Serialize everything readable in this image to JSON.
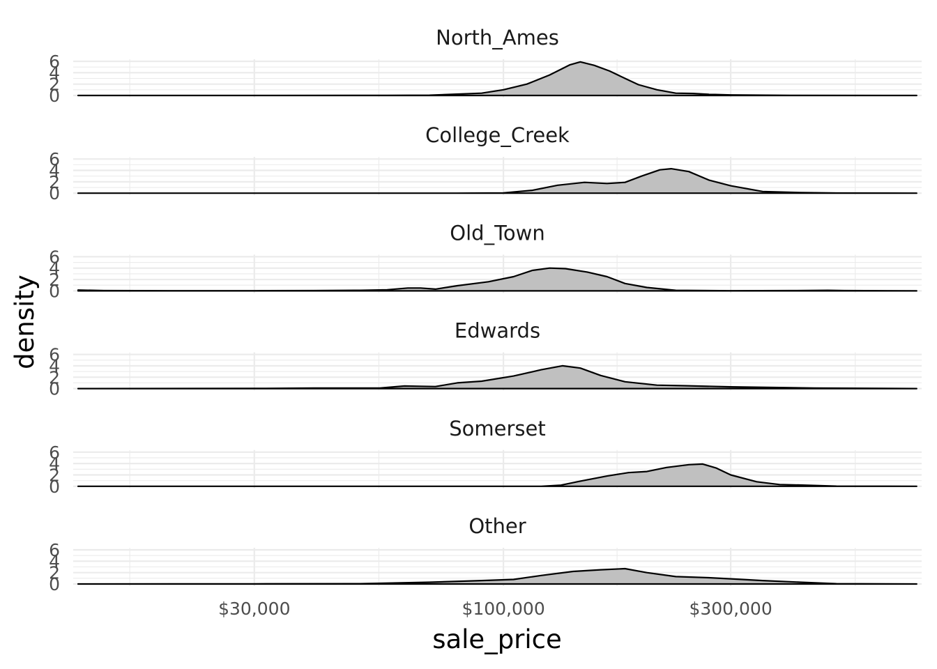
{
  "chart_data": {
    "type": "area",
    "xlabel": "sale_price",
    "ylabel": "density",
    "x_scale": "log10",
    "xlim": [
      12500,
      755000
    ],
    "ylim": [
      0,
      6
    ],
    "x_ticks": [
      {
        "value": 30000,
        "label": "$30,000"
      },
      {
        "value": 100000,
        "label": "$100,000"
      },
      {
        "value": 300000,
        "label": "$300,000"
      }
    ],
    "y_ticks": [
      {
        "value": 0,
        "label": "0"
      },
      {
        "value": 2,
        "label": "2"
      },
      {
        "value": 4,
        "label": "4"
      },
      {
        "value": 6,
        "label": "6"
      }
    ],
    "grid": true,
    "fill_color": "#c0c0c0",
    "line_color": "#000000",
    "panels": [
      {
        "name": "North_Ames",
        "points": [
          [
            12800,
            0
          ],
          [
            30000,
            0
          ],
          [
            57000,
            0.02
          ],
          [
            70000,
            0.05
          ],
          [
            90000,
            0.4
          ],
          [
            100000,
            1.0
          ],
          [
            112000,
            2.0
          ],
          [
            125000,
            3.6
          ],
          [
            138000,
            5.4
          ],
          [
            145000,
            5.9
          ],
          [
            155000,
            5.3
          ],
          [
            167000,
            4.3
          ],
          [
            180000,
            3.0
          ],
          [
            192000,
            1.9
          ],
          [
            210000,
            1.0
          ],
          [
            230000,
            0.4
          ],
          [
            250000,
            0.35
          ],
          [
            270000,
            0.2
          ],
          [
            300000,
            0.1
          ],
          [
            400000,
            0.03
          ],
          [
            737000,
            0
          ]
        ]
      },
      {
        "name": "College_Creek",
        "points": [
          [
            12800,
            0
          ],
          [
            50000,
            0
          ],
          [
            80000,
            0
          ],
          [
            100000,
            0.05
          ],
          [
            115000,
            0.5
          ],
          [
            130000,
            1.4
          ],
          [
            148000,
            1.9
          ],
          [
            165000,
            1.7
          ],
          [
            180000,
            1.9
          ],
          [
            195000,
            3.0
          ],
          [
            213000,
            4.1
          ],
          [
            225000,
            4.3
          ],
          [
            245000,
            3.8
          ],
          [
            270000,
            2.3
          ],
          [
            300000,
            1.3
          ],
          [
            350000,
            0.3
          ],
          [
            420000,
            0.1
          ],
          [
            500000,
            0.03
          ],
          [
            737000,
            0
          ]
        ]
      },
      {
        "name": "Old_Town",
        "points": [
          [
            12800,
            0.15
          ],
          [
            14500,
            0.05
          ],
          [
            20000,
            0.02
          ],
          [
            30000,
            0.02
          ],
          [
            40000,
            0.05
          ],
          [
            50000,
            0.1
          ],
          [
            57000,
            0.2
          ],
          [
            63000,
            0.5
          ],
          [
            67000,
            0.5
          ],
          [
            72000,
            0.3
          ],
          [
            80000,
            0.9
          ],
          [
            93000,
            1.6
          ],
          [
            105000,
            2.5
          ],
          [
            115000,
            3.6
          ],
          [
            125000,
            4.0
          ],
          [
            135000,
            3.9
          ],
          [
            150000,
            3.3
          ],
          [
            165000,
            2.5
          ],
          [
            180000,
            1.3
          ],
          [
            200000,
            0.6
          ],
          [
            230000,
            0.1
          ],
          [
            300000,
            0.02
          ],
          [
            400000,
            0.05
          ],
          [
            480000,
            0.1
          ],
          [
            520000,
            0.05
          ],
          [
            737000,
            0
          ]
        ]
      },
      {
        "name": "Edwards",
        "points": [
          [
            12800,
            0
          ],
          [
            30000,
            0.02
          ],
          [
            40000,
            0.08
          ],
          [
            55000,
            0.1
          ],
          [
            62000,
            0.45
          ],
          [
            67000,
            0.4
          ],
          [
            72000,
            0.35
          ],
          [
            80000,
            1.0
          ],
          [
            90000,
            1.3
          ],
          [
            105000,
            2.2
          ],
          [
            120000,
            3.3
          ],
          [
            133000,
            4.0
          ],
          [
            145000,
            3.6
          ],
          [
            160000,
            2.3
          ],
          [
            180000,
            1.2
          ],
          [
            210000,
            0.6
          ],
          [
            240000,
            0.5
          ],
          [
            300000,
            0.3
          ],
          [
            450000,
            0.1
          ],
          [
            737000,
            0
          ]
        ]
      },
      {
        "name": "Somerset",
        "points": [
          [
            12800,
            0
          ],
          [
            80000,
            0
          ],
          [
            120000,
            0
          ],
          [
            132000,
            0.2
          ],
          [
            145000,
            0.9
          ],
          [
            165000,
            1.8
          ],
          [
            183000,
            2.4
          ],
          [
            200000,
            2.6
          ],
          [
            220000,
            3.3
          ],
          [
            245000,
            3.8
          ],
          [
            262000,
            3.9
          ],
          [
            280000,
            3.2
          ],
          [
            300000,
            2.0
          ],
          [
            340000,
            0.8
          ],
          [
            380000,
            0.3
          ],
          [
            430000,
            0.2
          ],
          [
            500000,
            0.03
          ],
          [
            737000,
            0
          ]
        ]
      },
      {
        "name": "Other",
        "points": [
          [
            12800,
            0
          ],
          [
            30000,
            0.02
          ],
          [
            50000,
            0.05
          ],
          [
            70000,
            0.3
          ],
          [
            90000,
            0.6
          ],
          [
            105000,
            0.8
          ],
          [
            120000,
            1.5
          ],
          [
            140000,
            2.2
          ],
          [
            160000,
            2.5
          ],
          [
            180000,
            2.7
          ],
          [
            200000,
            2.0
          ],
          [
            230000,
            1.3
          ],
          [
            270000,
            1.1
          ],
          [
            300000,
            0.9
          ],
          [
            350000,
            0.6
          ],
          [
            420000,
            0.3
          ],
          [
            500000,
            0.05
          ],
          [
            737000,
            0
          ]
        ]
      }
    ]
  }
}
